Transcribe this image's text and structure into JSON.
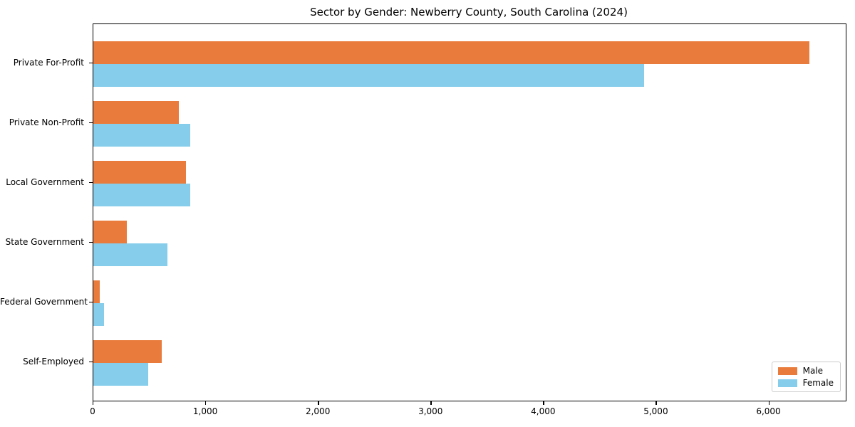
{
  "chart_data": {
    "type": "bar",
    "orientation": "horizontal",
    "title": "Sector by Gender: Newberry County, South Carolina (2024)",
    "categories": [
      "Private For-Profit",
      "Private Non-Profit",
      "Local Government",
      "State Government",
      "Federal Government",
      "Self-Employed"
    ],
    "series": [
      {
        "name": "Male",
        "color": "#E97C3C",
        "values": [
          6360,
          760,
          825,
          295,
          60,
          610
        ]
      },
      {
        "name": "Female",
        "color": "#85CDEB",
        "values": [
          4890,
          860,
          860,
          655,
          95,
          485
        ]
      }
    ],
    "xlabel": "",
    "ylabel": "",
    "xlim": [
      0,
      6680
    ],
    "xticks": [
      0,
      1000,
      2000,
      3000,
      4000,
      5000,
      6000
    ],
    "xtick_labels": [
      "0",
      "1,000",
      "2,000",
      "3,000",
      "4,000",
      "5,000",
      "6,000"
    ],
    "legend_position": "lower right",
    "grid": false,
    "colors": {
      "spine": "#000000",
      "background": "#ffffff",
      "legend_border": "#cccccc"
    }
  }
}
